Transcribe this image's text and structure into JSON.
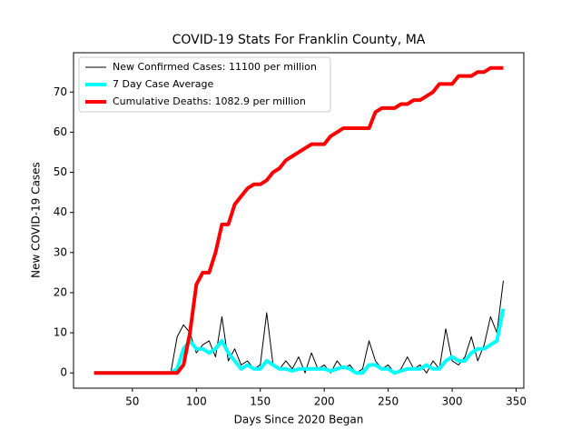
{
  "chart_data": {
    "type": "line",
    "title": "COVID-19 Stats For Franklin County, MA",
    "xlabel": "Days Since 2020 Began",
    "ylabel": "New COVID-19 Cases",
    "x": [
      20,
      25,
      30,
      35,
      40,
      45,
      50,
      55,
      60,
      65,
      70,
      75,
      80,
      85,
      90,
      95,
      100,
      105,
      110,
      115,
      120,
      125,
      130,
      135,
      140,
      145,
      150,
      155,
      160,
      165,
      170,
      175,
      180,
      185,
      190,
      195,
      200,
      205,
      210,
      215,
      220,
      225,
      230,
      235,
      240,
      245,
      250,
      255,
      260,
      265,
      270,
      275,
      280,
      285,
      290,
      295,
      300,
      305,
      310,
      315,
      320,
      325,
      330,
      335,
      340
    ],
    "series": [
      {
        "name": "New Confirmed Cases: 11100 per million",
        "color": "#000000",
        "width": 1,
        "values": [
          0,
          0,
          0,
          0,
          0,
          0,
          0,
          0,
          0,
          0,
          0,
          0,
          0,
          9,
          12,
          10,
          5,
          7,
          8,
          4,
          14,
          3,
          6,
          2,
          3,
          1,
          2,
          15,
          2,
          1,
          3,
          1,
          4,
          0,
          5,
          1,
          2,
          0,
          3,
          1,
          2,
          0,
          1,
          8,
          3,
          1,
          2,
          0,
          1,
          4,
          1,
          2,
          0,
          3,
          1,
          11,
          3,
          2,
          4,
          9,
          3,
          7,
          14,
          10,
          23
        ]
      },
      {
        "name": "7 Day Case Average",
        "color": "#00ffff",
        "width": 4,
        "values": [
          0,
          0,
          0,
          0,
          0,
          0,
          0,
          0,
          0,
          0,
          0,
          0,
          0,
          1,
          6,
          8,
          6,
          6,
          5,
          6,
          8,
          5,
          3,
          1,
          2,
          1,
          1,
          3,
          2,
          1,
          1,
          0.5,
          1,
          1,
          1,
          1,
          1,
          0.5,
          1,
          1.5,
          1,
          0,
          0,
          2,
          2,
          1,
          1,
          0,
          0.5,
          1,
          1,
          1,
          2,
          1,
          1,
          3,
          4,
          3,
          3,
          5,
          6,
          6,
          7,
          8,
          16
        ]
      },
      {
        "name": "Cumulative Deaths: 1082.9 per million",
        "color": "#ff0000",
        "width": 4,
        "values": [
          0,
          0,
          0,
          0,
          0,
          0,
          0,
          0,
          0,
          0,
          0,
          0,
          0,
          0,
          2,
          10,
          22,
          25,
          25,
          30,
          37,
          37,
          42,
          44,
          46,
          47,
          47,
          48,
          50,
          51,
          53,
          54,
          55,
          56,
          57,
          57,
          57,
          59,
          60,
          61,
          61,
          61,
          61,
          61,
          65,
          66,
          66,
          66,
          67,
          67,
          68,
          68,
          69,
          70,
          72,
          72,
          72,
          74,
          74,
          74,
          75,
          75,
          76,
          76,
          76
        ]
      }
    ],
    "xlim": [
      4,
      356
    ],
    "xticks": [
      50,
      100,
      150,
      200,
      250,
      300,
      350
    ],
    "ylim": [
      -3.8,
      79.8
    ],
    "yticks": [
      0,
      10,
      20,
      30,
      40,
      50,
      60,
      70
    ],
    "legend": "upper left"
  }
}
